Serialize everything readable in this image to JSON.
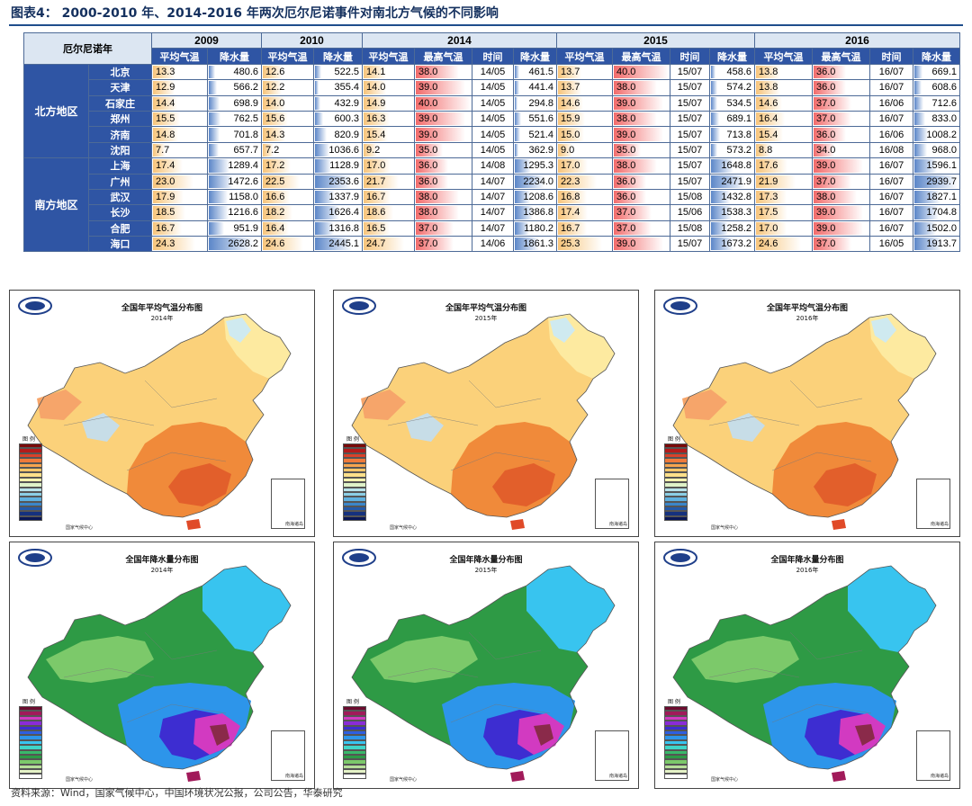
{
  "title": "图表4：  2000-2010 年、2014-2016 年两次厄尔尼诺事件对南北方气候的不同影响",
  "table": {
    "corner": "厄尔尼诺年",
    "years": [
      {
        "label": "2009",
        "cols": [
          "平均气温",
          "降水量"
        ]
      },
      {
        "label": "2010",
        "cols": [
          "平均气温",
          "降水量"
        ]
      },
      {
        "label": "2014",
        "cols": [
          "平均气温",
          "最高气温",
          "时间",
          "降水量"
        ]
      },
      {
        "label": "2015",
        "cols": [
          "平均气温",
          "最高气温",
          "时间",
          "降水量"
        ]
      },
      {
        "label": "2016",
        "cols": [
          "平均气温",
          "最高气温",
          "时间",
          "降水量"
        ]
      }
    ],
    "regions": [
      {
        "name": "北方地区",
        "rows": [
          [
            "北京",
            "13.3",
            "480.6",
            "12.6",
            "522.5",
            "14.1",
            "38.0",
            "14/05",
            "461.5",
            "13.7",
            "40.0",
            "15/07",
            "458.6",
            "13.8",
            "36.0",
            "16/07",
            "669.1"
          ],
          [
            "天津",
            "12.9",
            "566.2",
            "12.2",
            "355.4",
            "14.0",
            "39.0",
            "14/05",
            "441.4",
            "13.7",
            "38.0",
            "15/07",
            "574.2",
            "13.8",
            "36.0",
            "16/07",
            "608.6"
          ],
          [
            "石家庄",
            "14.4",
            "698.9",
            "14.0",
            "432.9",
            "14.9",
            "40.0",
            "14/05",
            "294.8",
            "14.6",
            "39.0",
            "15/07",
            "534.5",
            "14.6",
            "37.0",
            "16/06",
            "712.6"
          ],
          [
            "郑州",
            "15.5",
            "762.5",
            "15.6",
            "600.3",
            "16.3",
            "39.0",
            "14/05",
            "551.6",
            "15.9",
            "38.0",
            "15/07",
            "689.1",
            "16.4",
            "37.0",
            "16/07",
            "833.0"
          ],
          [
            "济南",
            "14.8",
            "701.8",
            "14.3",
            "820.9",
            "15.4",
            "39.0",
            "14/05",
            "521.4",
            "15.0",
            "39.0",
            "15/07",
            "713.8",
            "15.4",
            "36.0",
            "16/06",
            "1008.2"
          ],
          [
            "沈阳",
            "7.7",
            "657.7",
            "7.2",
            "1036.6",
            "9.2",
            "35.0",
            "14/05",
            "362.9",
            "9.0",
            "35.0",
            "15/07",
            "573.2",
            "8.8",
            "34.0",
            "16/08",
            "968.0"
          ]
        ]
      },
      {
        "name": "南方地区",
        "rows": [
          [
            "上海",
            "17.4",
            "1289.4",
            "17.2",
            "1128.9",
            "17.0",
            "36.0",
            "14/08",
            "1295.3",
            "17.0",
            "38.0",
            "15/07",
            "1648.8",
            "17.6",
            "39.0",
            "16/07",
            "1596.1"
          ],
          [
            "广州",
            "23.0",
            "1472.6",
            "22.5",
            "2353.6",
            "21.7",
            "36.0",
            "14/07",
            "2234.0",
            "22.3",
            "36.0",
            "15/07",
            "2471.9",
            "21.9",
            "37.0",
            "16/07",
            "2939.7"
          ],
          [
            "武汉",
            "17.9",
            "1158.0",
            "16.6",
            "1337.9",
            "16.7",
            "38.0",
            "14/07",
            "1208.6",
            "16.8",
            "36.0",
            "15/08",
            "1432.8",
            "17.3",
            "38.0",
            "16/07",
            "1827.1"
          ],
          [
            "长沙",
            "18.5",
            "1216.6",
            "18.2",
            "1626.4",
            "18.6",
            "38.0",
            "14/07",
            "1386.8",
            "17.4",
            "37.0",
            "15/06",
            "1538.3",
            "17.5",
            "39.0",
            "16/07",
            "1704.8"
          ],
          [
            "合肥",
            "16.7",
            "951.9",
            "16.4",
            "1316.8",
            "16.5",
            "37.0",
            "14/07",
            "1180.2",
            "16.7",
            "37.0",
            "15/08",
            "1258.2",
            "17.0",
            "39.0",
            "16/07",
            "1502.0"
          ],
          [
            "海口",
            "24.3",
            "2628.2",
            "24.6",
            "2445.1",
            "24.7",
            "37.0",
            "14/06",
            "1861.3",
            "25.3",
            "39.0",
            "15/07",
            "1673.2",
            "24.6",
            "37.0",
            "16/05",
            "1913.7"
          ]
        ]
      }
    ]
  },
  "colors": {
    "header_blue": "#2f55a4",
    "header_light": "#dce6f2",
    "temp_bar": "#f7c47a",
    "max_bar": "#f26b6b",
    "precip_bar": "#5b86c8",
    "title_text": "#14305e"
  },
  "maps": [
    {
      "kind": "temp",
      "title": "全国年平均气温分布图",
      "year": "2014年",
      "legend_title": "图 例",
      "credit": "国家气候中心",
      "inset_label": "南海诸岛"
    },
    {
      "kind": "temp",
      "title": "全国年平均气温分布图",
      "year": "2015年",
      "legend_title": "图 例",
      "credit": "国家气候中心",
      "inset_label": "南海诸岛"
    },
    {
      "kind": "temp",
      "title": "全国年平均气温分布图",
      "year": "2016年",
      "legend_title": "图 例",
      "credit": "国家气候中心",
      "inset_label": "南海诸岛"
    },
    {
      "kind": "precip",
      "title": "全国年降水量分布图",
      "year": "2014年",
      "legend_title": "图 例",
      "credit": "国家气候中心",
      "inset_label": "南海诸岛"
    },
    {
      "kind": "precip",
      "title": "全国年降水量分布图",
      "year": "2015年",
      "legend_title": "图 例",
      "credit": "国家气候中心",
      "inset_label": "南海诸岛"
    },
    {
      "kind": "precip",
      "title": "全国年降水量分布图",
      "year": "2016年",
      "legend_title": "图 例",
      "credit": "国家气候中心",
      "inset_label": "南海诸岛"
    }
  ],
  "legend_colors": {
    "temp": [
      "#7a0a0a",
      "#b31b1b",
      "#d9412a",
      "#ef7a3b",
      "#f6a54f",
      "#fbc66a",
      "#fde08a",
      "#fff4b0",
      "#dff2c8",
      "#b8e3ea",
      "#8ccfe6",
      "#5fb0de",
      "#3b86c9",
      "#2459a8",
      "#15317e",
      "#0a1756"
    ],
    "precip": [
      "#6b0b2e",
      "#a11a5a",
      "#d23ac1",
      "#8a2bd8",
      "#3d2dd1",
      "#2f5fe0",
      "#2d95ea",
      "#38c4ef",
      "#3fd6c8",
      "#39b86a",
      "#2e9a45",
      "#7cc96a",
      "#b7e09a",
      "#e4f2c6",
      "#ffffff"
    ]
  },
  "source": "资料来源：Wind，国家气候中心，中国环境状况公报，公司公告，华泰研究"
}
